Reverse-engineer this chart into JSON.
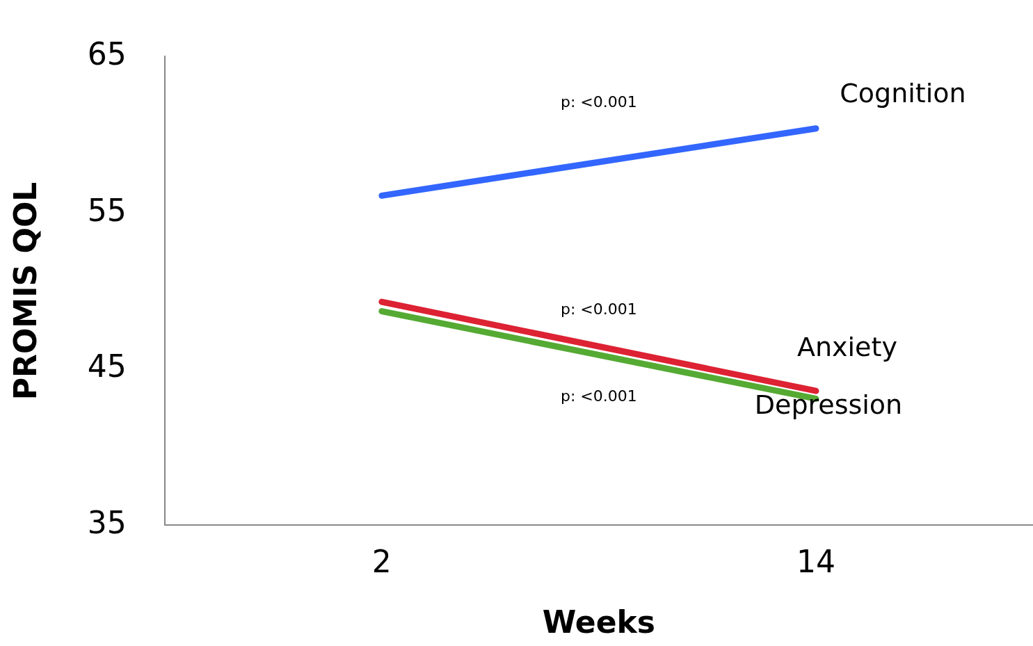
{
  "chart_data": {
    "type": "line",
    "xlabel": "Weeks",
    "ylabel": "PROMIS QOL",
    "x": [
      2,
      14
    ],
    "xlim": [
      -4,
      20
    ],
    "xticks": [
      2,
      14
    ],
    "ylim": [
      35,
      65
    ],
    "yticks": [
      35,
      45,
      55,
      65
    ],
    "grid": false,
    "legend": false,
    "marker": "none",
    "line_style": "solid",
    "series": [
      {
        "name": "Cognition",
        "color": "#3366ff",
        "values": [
          56.1,
          60.4
        ]
      },
      {
        "name": "Anxiety",
        "color": "#dd2233",
        "values": [
          49.3,
          43.6
        ]
      },
      {
        "name": "Depression",
        "color": "#55aa33",
        "values": [
          48.7,
          43.1
        ]
      }
    ],
    "annotations": [
      "p: <0.001",
      "p: <0.001",
      "p: <0.001"
    ]
  }
}
